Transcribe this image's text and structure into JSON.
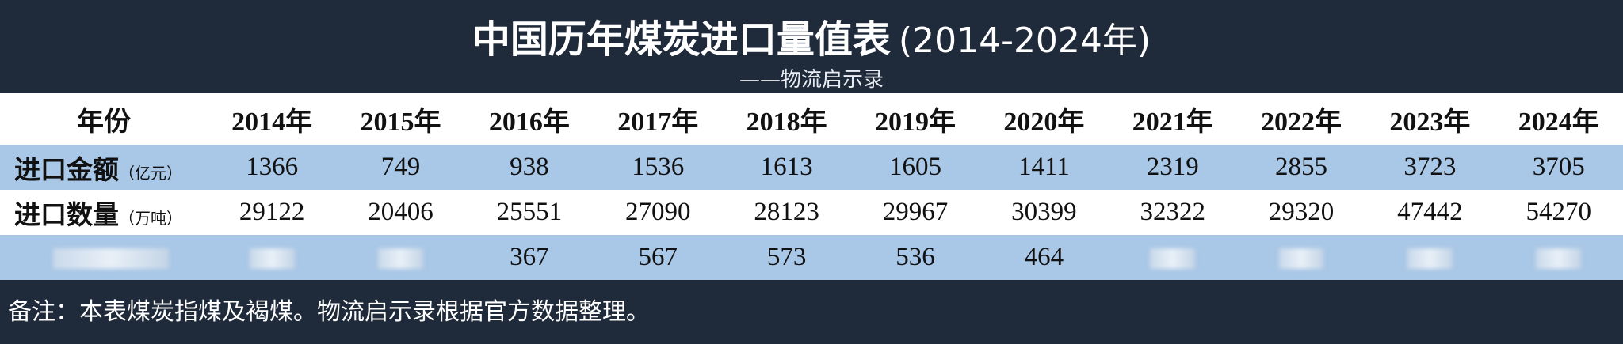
{
  "header": {
    "title": "中国历年煤炭进口量值表",
    "title_suffix": "(2014-2024年)",
    "subtitle": "——物流启示录"
  },
  "table": {
    "columns": [
      "年份",
      "2014年",
      "2015年",
      "2016年",
      "2017年",
      "2018年",
      "2019年",
      "2020年",
      "2021年",
      "2022年",
      "2023年",
      "2024年"
    ],
    "rows": [
      {
        "label": "进口金额",
        "unit": "（亿元）",
        "values": [
          1366,
          749,
          938,
          1536,
          1613,
          1605,
          1411,
          2319,
          2855,
          3723,
          3705
        ]
      },
      {
        "label": "进口数量",
        "unit": "（万吨）",
        "values": [
          29122,
          20406,
          25551,
          27090,
          28123,
          29967,
          30399,
          32322,
          29320,
          47442,
          54270
        ]
      },
      {
        "label": null,
        "unit": null,
        "values": [
          null,
          null,
          367,
          567,
          573,
          536,
          464,
          null,
          null,
          null,
          null
        ]
      }
    ]
  },
  "footer": {
    "note": "备注：本表煤炭指煤及褐煤。物流启示录根据官方数据整理。"
  }
}
